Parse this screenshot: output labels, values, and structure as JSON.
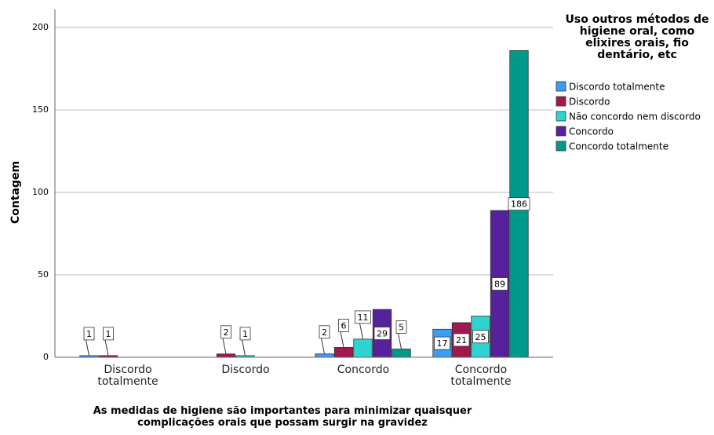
{
  "chart_data": {
    "type": "bar",
    "x_label": "As medidas de higiene são importantes para minimizar quaisquer complicações orais que possam surgir na gravidez",
    "y_label": "Contagem",
    "legend_title": "Uso outros métodos de higiene oral, como elixires orais, fio dentário, etc",
    "categories": [
      "Discordo totalmente",
      "Discordo",
      "Concordo",
      "Concordo totalmente"
    ],
    "series": [
      {
        "name": "Discordo totalmente",
        "color": "#3d9df0",
        "values": [
          1,
          0,
          2,
          17
        ]
      },
      {
        "name": "Discordo",
        "color": "#a2174d",
        "values": [
          1,
          2,
          6,
          21
        ]
      },
      {
        "name": "Não concordo nem discordo",
        "color": "#2fd4d0",
        "values": [
          0,
          1,
          11,
          25
        ]
      },
      {
        "name": "Concordo",
        "color": "#55229b",
        "values": [
          0,
          0,
          29,
          89
        ]
      },
      {
        "name": "Concordo totalmente",
        "color": "#00998a",
        "values": [
          0,
          0,
          5,
          186
        ]
      }
    ],
    "ylim": [
      0,
      200
    ],
    "yticks": [
      0,
      50,
      100,
      150,
      200
    ],
    "grid": true
  }
}
